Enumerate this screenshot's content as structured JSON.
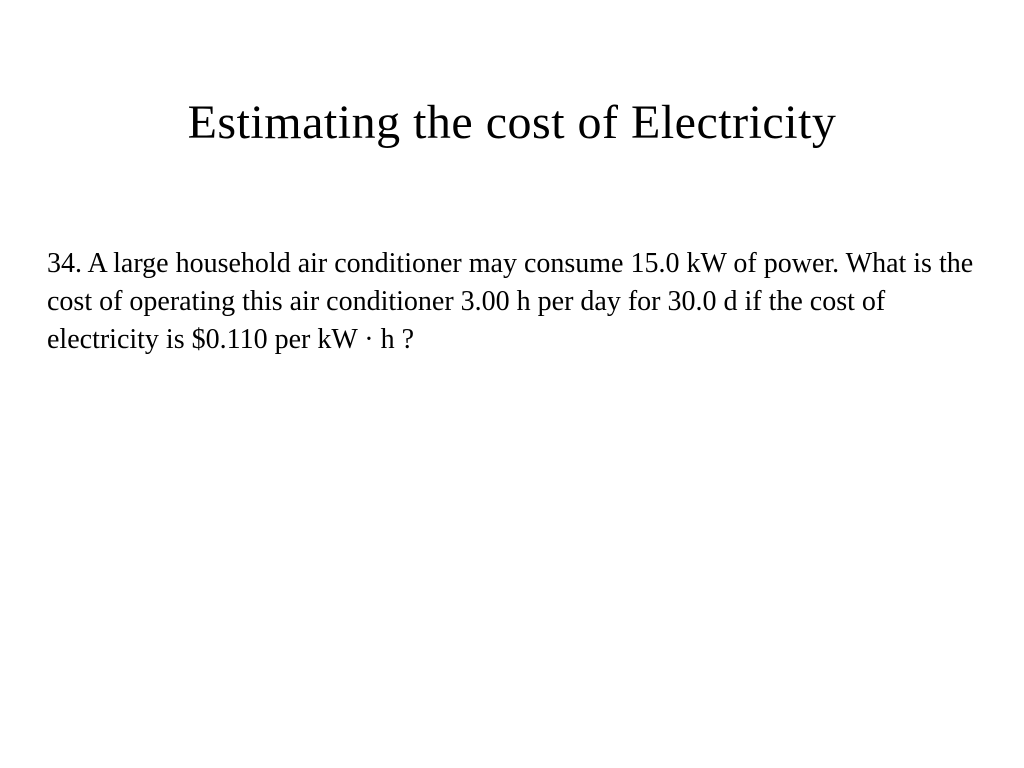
{
  "slide": {
    "title": "Estimating the cost of Electricity",
    "body": "34. A large household air conditioner may consume 15.0 kW of power. What is the cost of operating this air conditioner 3.00 h per day for 30.0 d if the cost of electricity is $0.110 per kW · h ?"
  },
  "style": {
    "background_color": "#ffffff",
    "text_color": "#000000",
    "font_family": "Times New Roman",
    "title_fontsize": 48,
    "body_fontsize": 28,
    "title_weight": "normal",
    "body_weight": "normal"
  }
}
